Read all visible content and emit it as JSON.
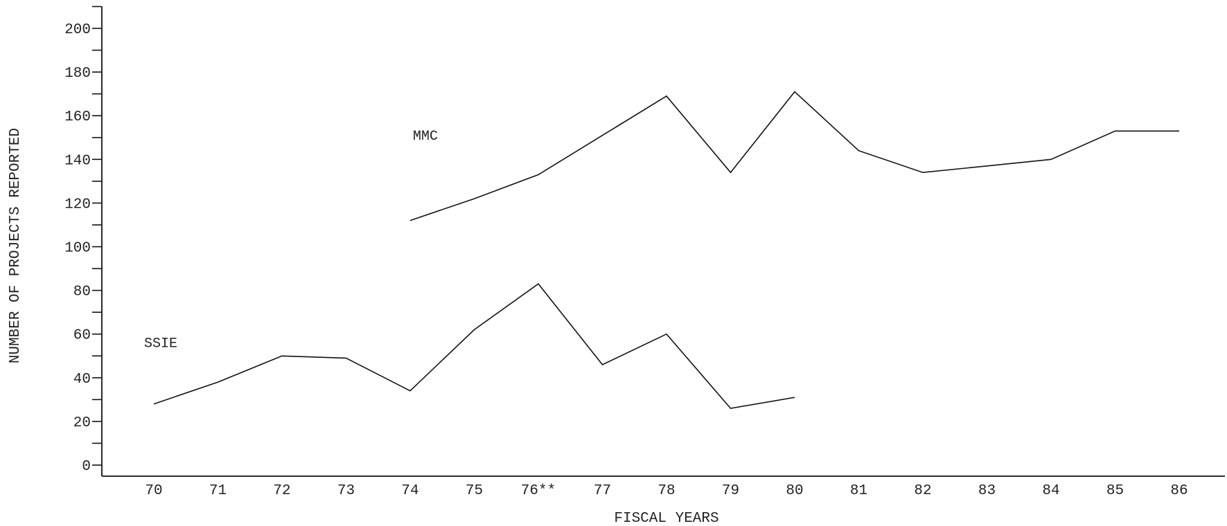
{
  "chart_data": {
    "type": "line",
    "title": "",
    "xlabel": "FISCAL YEARS",
    "ylabel": "NUMBER OF PROJECTS REPORTED",
    "ylim": [
      0,
      200
    ],
    "yticks": [
      0,
      20,
      40,
      60,
      80,
      100,
      120,
      140,
      160,
      180,
      200
    ],
    "ytick_labels": [
      "0",
      "20",
      "40",
      "60",
      "80",
      "100",
      "120",
      "140",
      "160",
      "180",
      "200"
    ],
    "categories": [
      "70",
      "71",
      "72",
      "73",
      "74",
      "75",
      "76**",
      "77",
      "78",
      "79",
      "80",
      "81",
      "82",
      "83",
      "84",
      "85",
      "86"
    ],
    "grid": false,
    "legend": "none",
    "series": [
      {
        "name": "MMC",
        "x": [
          "74",
          "75",
          "76**",
          "77",
          "78",
          "79",
          "80",
          "81",
          "82",
          "83",
          "84",
          "85",
          "86"
        ],
        "values": [
          112,
          122,
          133,
          151,
          169,
          134,
          171,
          144,
          134,
          137,
          140,
          153,
          153
        ],
        "color": "#111111"
      },
      {
        "name": "SSIE",
        "x": [
          "70",
          "71",
          "72",
          "73",
          "74",
          "75",
          "76**",
          "77",
          "78",
          "79",
          "80"
        ],
        "values": [
          28,
          38,
          50,
          49,
          34,
          62,
          83,
          46,
          60,
          26,
          31
        ],
        "color": "#111111"
      }
    ]
  }
}
